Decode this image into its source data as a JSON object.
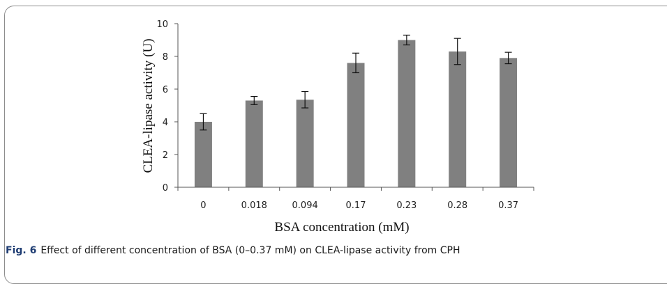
{
  "caption": {
    "label": "Fig. 6",
    "text": "Effect of different concentration of BSA (0–0.37 mM) on CLEA-lipase activity from CPH"
  },
  "chart_data": {
    "type": "bar",
    "title": "",
    "xlabel": "BSA concentration (mM)",
    "ylabel": "CLEA-lipase activity (U)",
    "categories": [
      "0",
      "0.018",
      "0.094",
      "0.17",
      "0.23",
      "0.28",
      "0.37"
    ],
    "values": [
      4.0,
      5.3,
      5.35,
      7.6,
      9.0,
      8.3,
      7.9
    ],
    "errors": [
      0.5,
      0.25,
      0.5,
      0.6,
      0.3,
      0.8,
      0.35
    ],
    "ylim": [
      0,
      10
    ],
    "yticks": [
      0,
      2,
      4,
      6,
      8,
      10
    ],
    "grid": false,
    "bar_color": "#808080"
  }
}
